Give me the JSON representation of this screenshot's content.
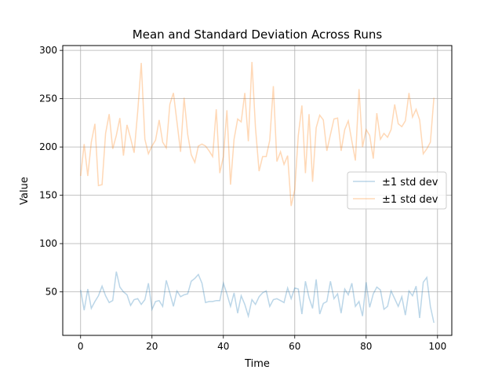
{
  "chart_data": {
    "type": "line",
    "title": "Mean and Standard Deviation Across Runs",
    "xlabel": "Time",
    "ylabel": "Value",
    "xlim": [
      -5,
      104
    ],
    "ylim": [
      5,
      305
    ],
    "xticks": [
      0,
      20,
      40,
      60,
      80,
      100
    ],
    "yticks": [
      50,
      100,
      150,
      200,
      250,
      300
    ],
    "grid": true,
    "legend_position": "center-right",
    "series": [
      {
        "name": "±1 std dev",
        "color": "#1f77b4",
        "alpha": 0.3,
        "x": [
          0,
          1,
          2,
          3,
          4,
          5,
          6,
          7,
          8,
          9,
          10,
          11,
          12,
          13,
          14,
          15,
          16,
          17,
          18,
          19,
          20,
          21,
          22,
          23,
          24,
          25,
          26,
          27,
          28,
          29,
          30,
          31,
          32,
          33,
          34,
          35,
          36,
          37,
          38,
          39,
          40,
          41,
          42,
          43,
          44,
          45,
          46,
          47,
          48,
          49,
          50,
          51,
          52,
          53,
          54,
          55,
          56,
          57,
          58,
          59,
          60,
          61,
          62,
          63,
          64,
          65,
          66,
          67,
          68,
          69,
          70,
          71,
          72,
          73,
          74,
          75,
          76,
          77,
          78,
          79,
          80,
          81,
          82,
          83,
          84,
          85,
          86,
          87,
          88,
          89,
          90,
          91,
          92,
          93,
          94,
          95,
          96,
          97,
          98,
          99
        ],
        "values": [
          52,
          31,
          53,
          33,
          40,
          46,
          56,
          46,
          39,
          41,
          71,
          55,
          50,
          47,
          36,
          42,
          43,
          37,
          42,
          59,
          32,
          40,
          41,
          35,
          62,
          49,
          35,
          51,
          45,
          47,
          48,
          61,
          64,
          68,
          59,
          39,
          40,
          40,
          41,
          41,
          59,
          48,
          35,
          49,
          28,
          46,
          37,
          25,
          42,
          37,
          45,
          49,
          51,
          35,
          42,
          43,
          41,
          39,
          54,
          43,
          54,
          53,
          27,
          61,
          44,
          33,
          63,
          27,
          38,
          40,
          61,
          43,
          48,
          28,
          53,
          47,
          59,
          35,
          40,
          25,
          60,
          34,
          48,
          55,
          52,
          32,
          35,
          51,
          43,
          35,
          45,
          26,
          51,
          46,
          56,
          23,
          60,
          65,
          35,
          18
        ]
      },
      {
        "name": "±1 std dev",
        "color": "#ff7f0e",
        "alpha": 0.3,
        "x": [
          0,
          1,
          2,
          3,
          4,
          5,
          6,
          7,
          8,
          9,
          10,
          11,
          12,
          13,
          14,
          15,
          16,
          17,
          18,
          19,
          20,
          21,
          22,
          23,
          24,
          25,
          26,
          27,
          28,
          29,
          30,
          31,
          32,
          33,
          34,
          35,
          36,
          37,
          38,
          39,
          40,
          41,
          42,
          43,
          44,
          45,
          46,
          47,
          48,
          49,
          50,
          51,
          52,
          53,
          54,
          55,
          56,
          57,
          58,
          59,
          60,
          61,
          62,
          63,
          64,
          65,
          66,
          67,
          68,
          69,
          70,
          71,
          72,
          73,
          74,
          75,
          76,
          77,
          78,
          79,
          80,
          81,
          82,
          83,
          84,
          85,
          86,
          87,
          88,
          89,
          90,
          91,
          92,
          93,
          94,
          95,
          96,
          97,
          98,
          99
        ],
        "values": [
          170,
          203,
          170,
          205,
          224,
          160,
          161,
          214,
          234,
          198,
          212,
          230,
          191,
          223,
          209,
          194,
          237,
          287,
          208,
          193,
          201,
          207,
          228,
          205,
          199,
          244,
          256,
          226,
          195,
          251,
          213,
          192,
          184,
          201,
          203,
          201,
          196,
          190,
          239,
          173,
          190,
          238,
          161,
          208,
          229,
          226,
          256,
          206,
          288,
          220,
          175,
          190,
          190,
          207,
          263,
          185,
          195,
          182,
          191,
          139,
          156,
          212,
          243,
          173,
          234,
          164,
          220,
          233,
          228,
          196,
          213,
          229,
          230,
          196,
          218,
          227,
          206,
          186,
          260,
          200,
          218,
          212,
          188,
          235,
          208,
          214,
          210,
          218,
          244,
          224,
          221,
          227,
          256,
          231,
          239,
          228,
          193,
          198,
          205,
          251
        ]
      }
    ]
  }
}
